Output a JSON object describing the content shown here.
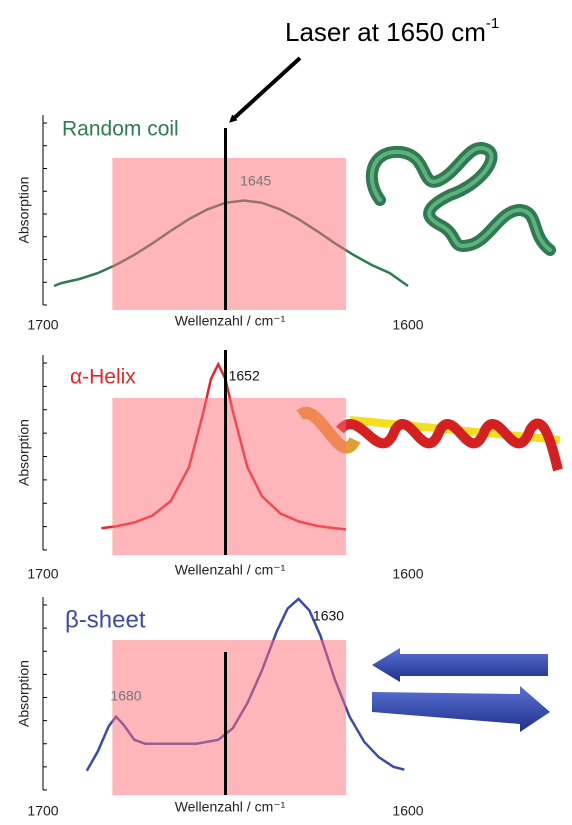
{
  "laser": {
    "text": "Laser at 1650 cm",
    "superscript": "-1",
    "x": 1650
  },
  "chart_data": [
    {
      "type": "line",
      "xlim": [
        1700,
        1600
      ],
      "xticks": [
        1700,
        1600
      ],
      "ylim": [
        0,
        1
      ],
      "xlabel": "Wellenzahl / cm⁻¹",
      "ylabel": "Absorption",
      "band": [
        1681,
        1617
      ],
      "peaks": [
        1645
      ],
      "series": [
        {
          "name": "Random coil",
          "color": "#2e7d52",
          "x": [
            1697,
            1695,
            1690,
            1685,
            1680,
            1675,
            1670,
            1665,
            1660,
            1655,
            1650,
            1645,
            1640,
            1635,
            1630,
            1625,
            1620,
            1615,
            1610,
            1605,
            1600
          ],
          "values": [
            0.1,
            0.115,
            0.137,
            0.168,
            0.211,
            0.264,
            0.325,
            0.39,
            0.452,
            0.503,
            0.538,
            0.55,
            0.538,
            0.503,
            0.452,
            0.39,
            0.325,
            0.264,
            0.211,
            0.168,
            0.1
          ]
        }
      ]
    },
    {
      "type": "line",
      "xlim": [
        1700,
        1600
      ],
      "xticks": [
        1700,
        1600
      ],
      "ylim": [
        0,
        1.05
      ],
      "xlabel": "Wellenzahl / cm⁻¹",
      "ylabel": "Absorption",
      "band": [
        1681,
        1617
      ],
      "peaks": [
        1652
      ],
      "series": [
        {
          "name": "α-Helix",
          "color": "#e8262b",
          "x": [
            1684,
            1680,
            1675,
            1670,
            1665,
            1660,
            1656,
            1654,
            1652,
            1650,
            1648,
            1644,
            1640,
            1635,
            1630,
            1625,
            1620,
            1617
          ],
          "values": [
            0.117,
            0.127,
            0.148,
            0.186,
            0.264,
            0.446,
            0.747,
            0.92,
            1.0,
            0.92,
            0.747,
            0.446,
            0.289,
            0.197,
            0.154,
            0.13,
            0.117,
            0.111
          ]
        }
      ]
    },
    {
      "type": "line",
      "xlim": [
        1700,
        1600
      ],
      "xticks": [
        1700,
        1600
      ],
      "ylim": [
        0,
        1
      ],
      "xlabel": "Wellenzahl / cm⁻¹",
      "ylabel": "Absorption",
      "band": [
        1681,
        1617
      ],
      "peaks": [
        1630,
        1680
      ],
      "series": [
        {
          "name": "β-sheet",
          "color": "#3a4ba8",
          "x": [
            1688,
            1685,
            1682,
            1680,
            1678,
            1675,
            1672,
            1665,
            1658,
            1652,
            1648,
            1644,
            1640,
            1636,
            1633,
            1630,
            1627,
            1624,
            1620,
            1616,
            1612,
            1608,
            1604,
            1601
          ],
          "values": [
            0.1,
            0.2,
            0.33,
            0.38,
            0.34,
            0.26,
            0.24,
            0.24,
            0.24,
            0.26,
            0.32,
            0.45,
            0.62,
            0.82,
            0.94,
            0.99,
            0.93,
            0.8,
            0.57,
            0.38,
            0.25,
            0.17,
            0.12,
            0.105
          ]
        }
      ]
    }
  ]
}
